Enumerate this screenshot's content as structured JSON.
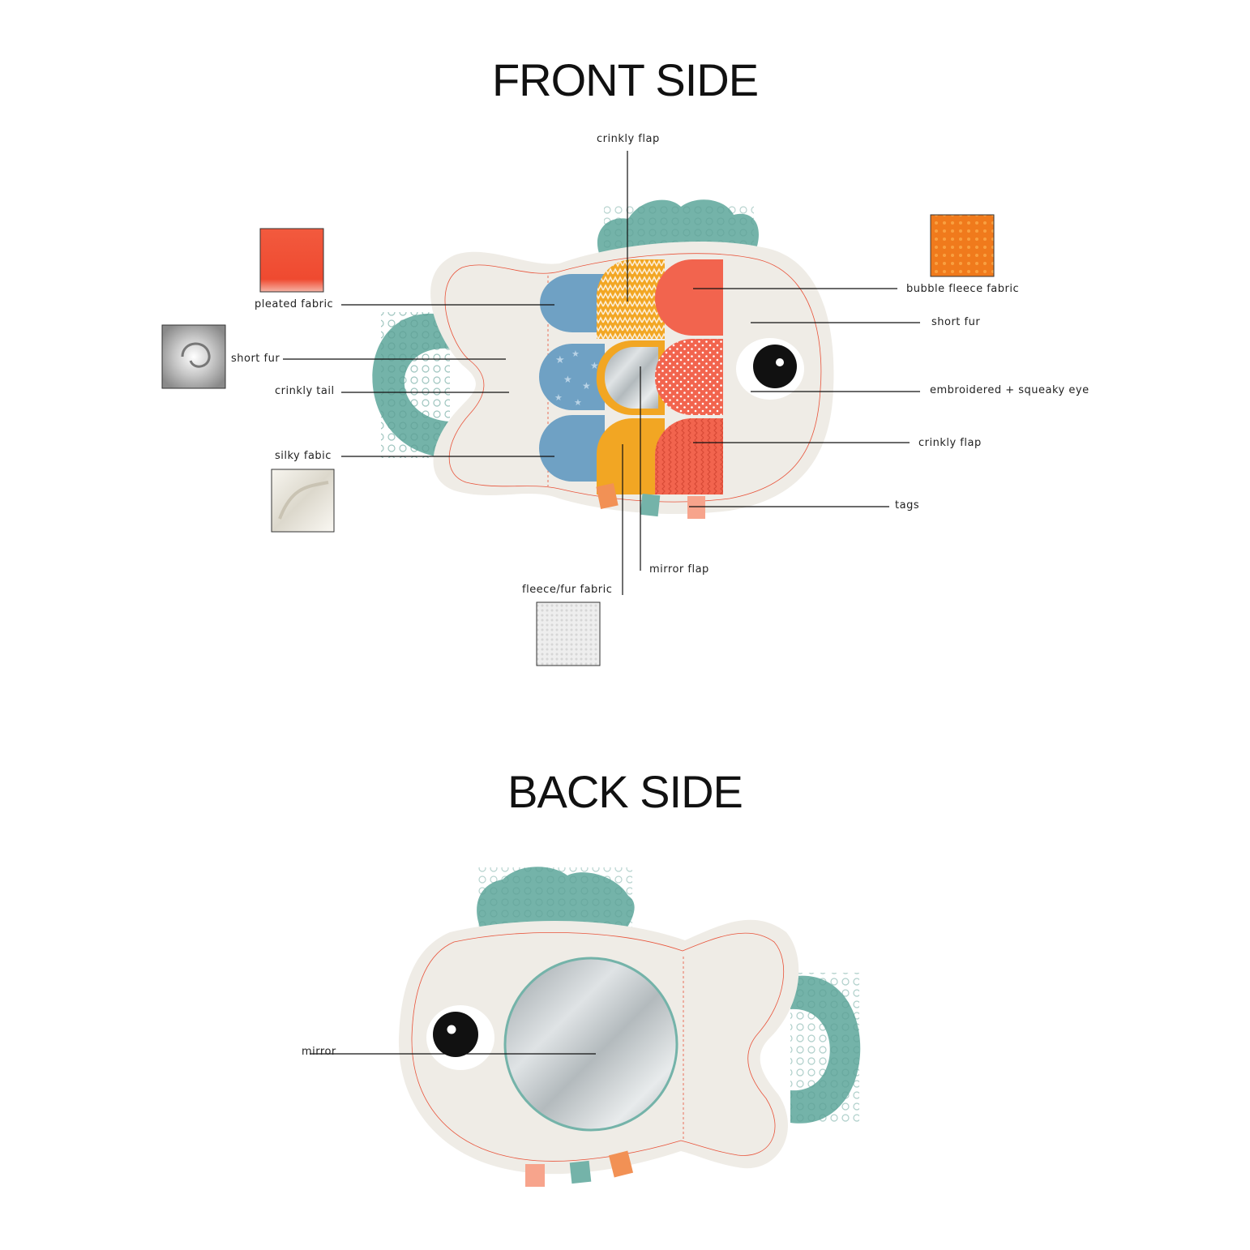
{
  "front": {
    "title": "FRONT SIDE",
    "labels": {
      "crinkly_flap_top": "crinkly flap",
      "pleated_fabric": "pleated fabric",
      "short_fur_left": "short fur",
      "crinkly_tail": "crinkly tail",
      "silky_fabic": "silky fabic",
      "bubble_fleece": "bubble fleece fabric",
      "short_fur_right": "short fur",
      "squeaky_eye": "embroidered + squeaky eye",
      "crinkly_flap_right": "crinkly flap",
      "tags": "tags",
      "mirror_flap": "mirror flap",
      "fleece_fur": "fleece/fur fabric"
    }
  },
  "back": {
    "title": "BACK SIDE",
    "labels": {
      "mirror": "mirror"
    }
  },
  "colors": {
    "body": "#efece6",
    "teal": "#74b3a9",
    "blue": "#6fa1c4",
    "yellow": "#f2a623",
    "coral": "#f2644e",
    "tag_orange": "#f29155",
    "tag_pink": "#f7a48c",
    "stitch": "#e8533a"
  }
}
